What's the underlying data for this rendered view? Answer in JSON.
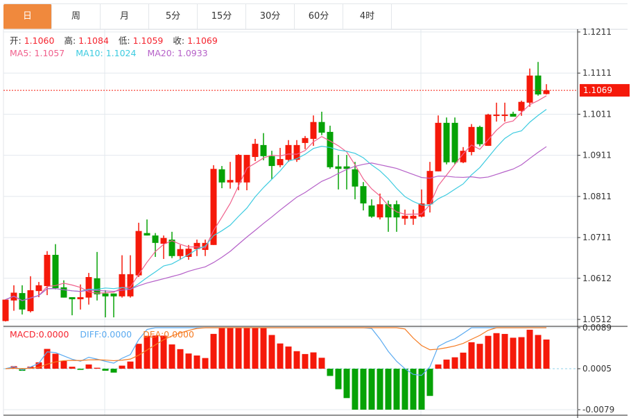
{
  "tabs": [
    "日",
    "周",
    "月",
    "5分",
    "15分",
    "30分",
    "60分",
    "4时"
  ],
  "active_tab": 0,
  "ohlc_info": {
    "open_label": "开:",
    "open": "1.1060",
    "high_label": "高:",
    "high": "1.1084",
    "low_label": "低:",
    "low": "1.1059",
    "close_label": "收:",
    "close": "1.1069"
  },
  "ma_info": {
    "ma5_label": "MA5:",
    "ma5": "1.1057",
    "ma10_label": "MA10:",
    "ma10": "1.1024",
    "ma20_label": "MA20:",
    "ma20": "1.0933"
  },
  "macd_info": {
    "macd_label": "MACD:",
    "macd": "0.0000",
    "diff_label": "DIFF:",
    "diff": "0.0000",
    "dea_label": "DEA:",
    "dea": "0.0000"
  },
  "current_price": "1.1069",
  "colors": {
    "up": "#f5190a",
    "down": "#06a206",
    "ma5": "#f0608c",
    "ma10": "#3ccbe0",
    "ma20": "#b560c8",
    "diff": "#5aaaf0",
    "dea": "#f57a20",
    "accent": "#F0893D"
  },
  "price_axis": [
    "1.1211",
    "1.1111",
    "1.1011",
    "1.0911",
    "1.0811",
    "1.0711",
    "1.0612",
    "1.0512"
  ],
  "macd_axis": [
    "0.0089",
    "0.0005",
    "-0.0079"
  ],
  "chart_data": {
    "type": "candlestick",
    "ylim": [
      1.0512,
      1.1211
    ],
    "ohlc": [
      [
        1.0508,
        1.0561,
        1.0507,
        1.056
      ],
      [
        1.0558,
        1.0595,
        1.0533,
        1.0577
      ],
      [
        1.0576,
        1.0595,
        1.0524,
        1.0536
      ],
      [
        1.0532,
        1.0617,
        1.0529,
        1.0583
      ],
      [
        1.0581,
        1.0603,
        1.0566,
        1.0595
      ],
      [
        1.0593,
        1.0678,
        1.0571,
        1.0669
      ],
      [
        1.0669,
        1.0695,
        1.0585,
        1.0588
      ],
      [
        1.059,
        1.0607,
        1.0565,
        1.0565
      ],
      [
        1.0566,
        1.0566,
        1.0522,
        1.0561
      ],
      [
        1.0561,
        1.0597,
        1.0536,
        1.0566
      ],
      [
        1.0565,
        1.0625,
        1.0548,
        1.0615
      ],
      [
        1.0612,
        1.0676,
        1.0558,
        1.0573
      ],
      [
        1.0575,
        1.0583,
        1.0517,
        1.0568
      ],
      [
        1.0575,
        1.0575,
        1.0517,
        1.0568
      ],
      [
        1.0568,
        1.0668,
        1.0565,
        1.0622
      ],
      [
        1.0568,
        1.0668,
        1.0565,
        1.0622
      ],
      [
        1.0619,
        1.0747,
        1.0615,
        1.0727
      ],
      [
        1.0722,
        1.0755,
        1.0716,
        1.0716
      ],
      [
        1.0716,
        1.0722,
        1.0664,
        1.0698
      ],
      [
        1.0696,
        1.0716,
        1.0659,
        1.071
      ],
      [
        1.0706,
        1.0725,
        1.0661,
        1.0666
      ],
      [
        1.0666,
        1.0693,
        1.0657,
        1.0683
      ],
      [
        1.0664,
        1.0693,
        1.0657,
        1.0684
      ],
      [
        1.0683,
        1.0706,
        1.0666,
        1.0698
      ],
      [
        1.0681,
        1.0706,
        1.0666,
        1.0698
      ],
      [
        1.0693,
        1.0887,
        1.0693,
        1.0878
      ],
      [
        1.0877,
        1.0885,
        1.0831,
        1.0845
      ],
      [
        1.0845,
        1.0895,
        1.083,
        1.0851
      ],
      [
        1.0845,
        1.0914,
        1.0826,
        1.0912
      ],
      [
        1.0845,
        1.0912,
        1.0826,
        1.0912
      ],
      [
        1.0907,
        1.0951,
        1.0897,
        1.0939
      ],
      [
        1.0936,
        1.0965,
        1.0899,
        1.0909
      ],
      [
        1.0909,
        1.0922,
        1.0853,
        1.0885
      ],
      [
        1.0887,
        1.0929,
        1.0882,
        1.0902
      ],
      [
        1.09,
        1.0948,
        1.0895,
        1.0936
      ],
      [
        1.09,
        1.0948,
        1.0895,
        1.0936
      ],
      [
        1.0941,
        1.0958,
        1.0926,
        1.0953
      ],
      [
        1.0951,
        1.1008,
        1.0934,
        1.0992
      ],
      [
        1.0992,
        1.1017,
        1.096,
        1.0966
      ],
      [
        1.0968,
        1.0983,
        1.0878,
        1.0882
      ],
      [
        1.0884,
        1.0912,
        1.0828,
        1.0878
      ],
      [
        1.0884,
        1.0912,
        1.0828,
        1.0878
      ],
      [
        1.0877,
        1.0895,
        1.0804,
        1.0835
      ],
      [
        1.0836,
        1.0846,
        1.0777,
        1.0794
      ],
      [
        1.0789,
        1.0804,
        1.0759,
        1.0762
      ],
      [
        1.076,
        1.0818,
        1.0755,
        1.0792
      ],
      [
        1.0792,
        1.0801,
        1.0725,
        1.076
      ],
      [
        1.0792,
        1.0801,
        1.0725,
        1.076
      ],
      [
        1.0757,
        1.0779,
        1.0742,
        1.0764
      ],
      [
        1.0757,
        1.0779,
        1.0742,
        1.0764
      ],
      [
        1.0762,
        1.0828,
        1.076,
        1.0794
      ],
      [
        1.0792,
        1.0895,
        1.0772,
        1.0873
      ],
      [
        1.0872,
        1.1008,
        1.0872,
        1.099
      ],
      [
        1.099,
        1.1003,
        1.0889,
        1.0894
      ],
      [
        1.099,
        1.1003,
        1.0889,
        1.0894
      ],
      [
        1.0894,
        1.0931,
        1.0892,
        1.0922
      ],
      [
        1.0919,
        1.0987,
        1.0911,
        1.098
      ],
      [
        1.098,
        1.0983,
        1.0933,
        1.0938
      ],
      [
        1.0934,
        1.1012,
        1.0934,
        1.101
      ],
      [
        1.1008,
        1.1039,
        1.0993,
        1.101
      ],
      [
        1.1008,
        1.1039,
        1.0993,
        1.101
      ],
      [
        1.1012,
        1.1017,
        1.1005,
        1.1005
      ],
      [
        1.1019,
        1.1044,
        1.1007,
        1.1041
      ],
      [
        1.1039,
        1.1122,
        1.1029,
        1.1105
      ],
      [
        1.1105,
        1.1138,
        1.1056,
        1.1059
      ],
      [
        1.106,
        1.1084,
        1.1059,
        1.1069
      ]
    ],
    "macd_ylim": [
      -0.0079,
      0.0089
    ]
  }
}
